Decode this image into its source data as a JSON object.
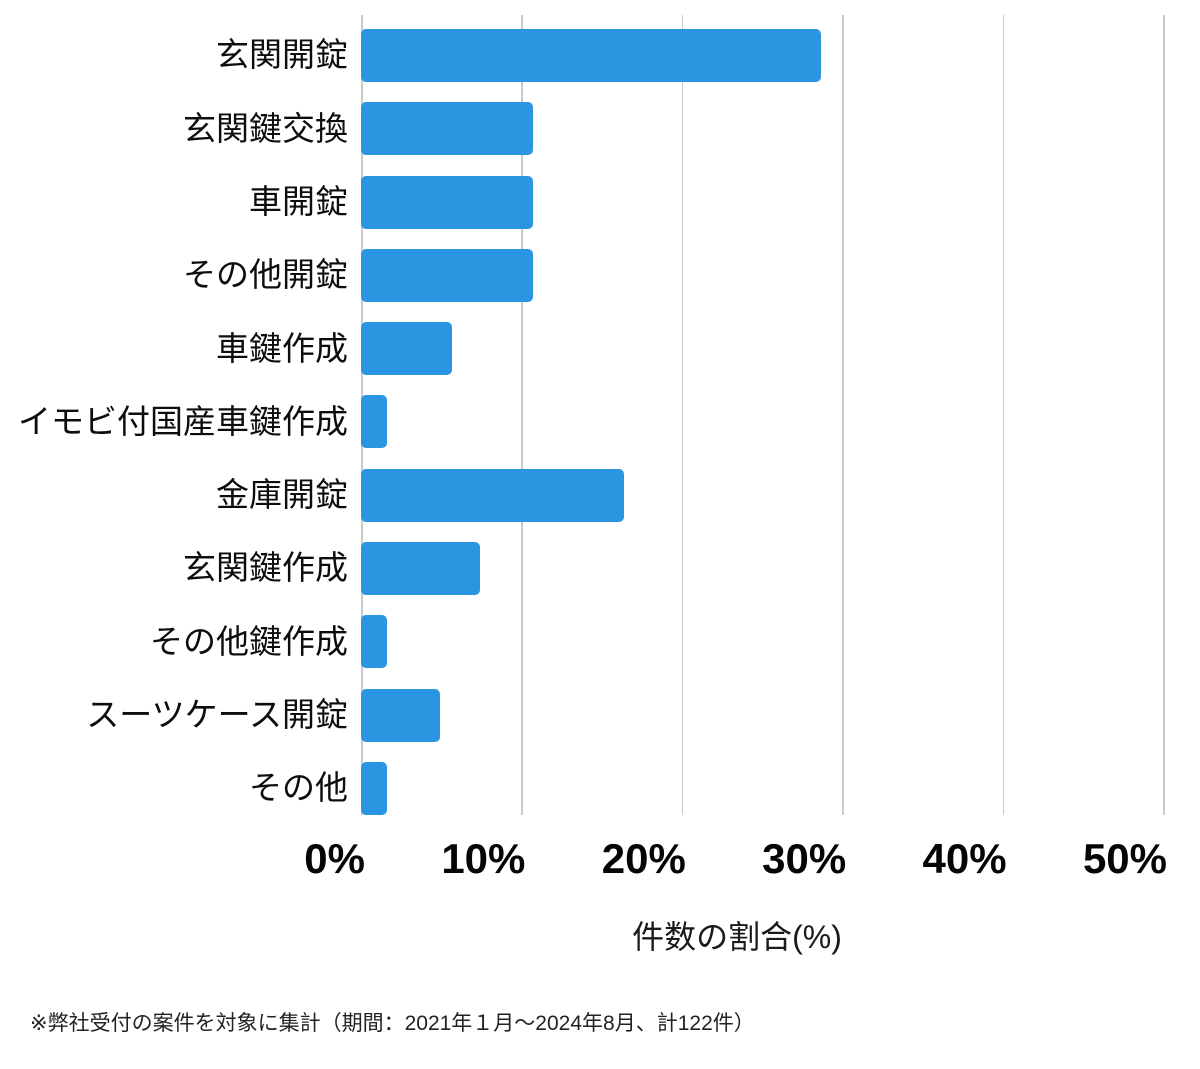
{
  "chart_data": {
    "type": "bar",
    "orientation": "horizontal",
    "title": "",
    "xlabel": "件数の割合(%)",
    "ylabel": "",
    "xlim": [
      0,
      50
    ],
    "xtick_labels": [
      "0%",
      "10%",
      "20%",
      "30%",
      "40%",
      "50%"
    ],
    "xtick_values": [
      0,
      10,
      20,
      30,
      40,
      50
    ],
    "grid": "vertical-gridlines-on",
    "legend": "none",
    "categories": [
      "玄関開錠",
      "玄関鍵交換",
      "車開錠",
      "その他開錠",
      "車鍵作成",
      "イモビ付国産車鍵作成",
      "金庫開錠",
      "玄関鍵作成",
      "その他鍵作成",
      "スーツケース開錠",
      "その他"
    ],
    "values": [
      28.7,
      10.7,
      10.7,
      10.7,
      5.7,
      1.6,
      16.4,
      7.4,
      1.6,
      4.9,
      1.6
    ],
    "unit": "percent"
  },
  "footnote": "※弊社受付の案件を対象に集計（期間：2021年１月～2024年8月、計122件）",
  "colors": {
    "bar": "#2b95e2",
    "grid": "#c9c9c9",
    "tick_text": "#050505",
    "label_text": "#0d0d0d",
    "note_text": "#222222",
    "background": "#ffffff"
  }
}
